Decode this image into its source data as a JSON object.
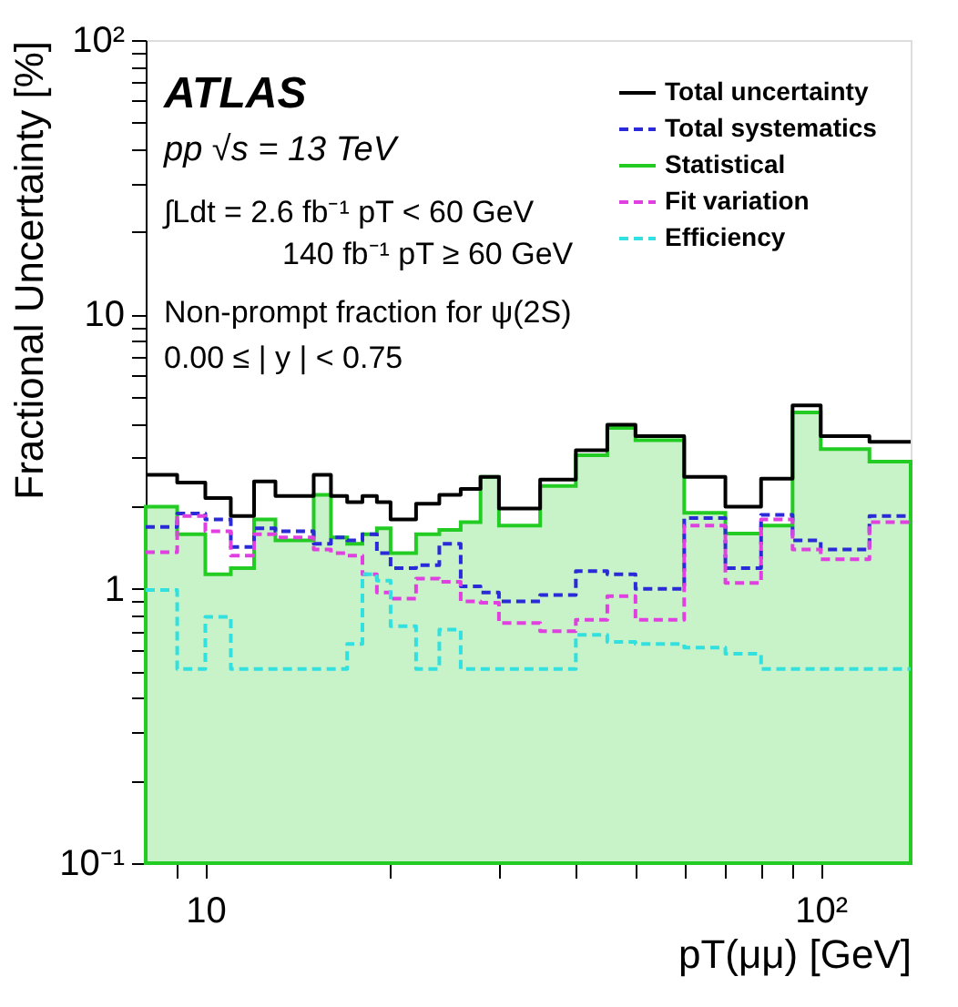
{
  "chart_data": {
    "type": "step",
    "xlabel": "pT(μμ) [GeV]",
    "ylabel": "Fractional Uncertainty [%]",
    "x": [
      8,
      9,
      10,
      11,
      12,
      13,
      15,
      16,
      17,
      18,
      19,
      20,
      22,
      24,
      26,
      28,
      30,
      35,
      40,
      45,
      50,
      60,
      70,
      80,
      90,
      100,
      120,
      140
    ],
    "series": [
      {
        "name": "Total uncertainty",
        "color": "#000000",
        "line_style": "solid",
        "values": [
          2.6,
          2.44,
          2.14,
          1.84,
          2.46,
          2.18,
          2.6,
          2.18,
          2.07,
          2.18,
          2.07,
          1.79,
          2.04,
          2.2,
          2.31,
          2.56,
          1.96,
          2.5,
          3.2,
          3.96,
          3.6,
          2.56,
          1.99,
          2.52,
          4.66,
          3.6,
          3.43,
          3.43
        ]
      },
      {
        "name": "Total systematics",
        "color": "#2a2ad8",
        "line_style": "dashed",
        "values": [
          1.68,
          1.88,
          1.79,
          1.42,
          1.66,
          1.62,
          1.46,
          1.54,
          1.5,
          1.58,
          1.35,
          1.19,
          1.22,
          1.46,
          1.02,
          0.97,
          0.9,
          0.95,
          1.16,
          1.13,
          1.0,
          1.81,
          1.19,
          1.86,
          1.5,
          1.39,
          1.84,
          1.84
        ]
      },
      {
        "name": "Statistical",
        "type": "area",
        "color": "#22cc22",
        "values": [
          1.99,
          1.58,
          1.13,
          1.19,
          1.79,
          1.5,
          2.2,
          1.54,
          1.46,
          1.58,
          1.66,
          1.35,
          1.58,
          1.64,
          1.75,
          2.56,
          1.7,
          2.37,
          3.07,
          3.86,
          3.48,
          1.89,
          1.59,
          1.7,
          4.39,
          3.23,
          2.91,
          2.91
        ]
      },
      {
        "name": "Fit variation",
        "color": "#e040e0",
        "line_style": "dashed",
        "values": [
          1.36,
          1.84,
          1.62,
          1.32,
          1.58,
          1.54,
          1.39,
          1.35,
          1.32,
          1.13,
          0.97,
          0.92,
          1.09,
          1.06,
          0.9,
          0.89,
          0.75,
          0.7,
          0.77,
          0.94,
          0.77,
          1.7,
          1.05,
          1.79,
          1.39,
          1.28,
          1.75,
          1.75
        ]
      },
      {
        "name": "Efficiency",
        "color": "#33e0e0",
        "line_style": "dashed",
        "values": [
          0.99,
          0.51,
          0.79,
          0.51,
          0.51,
          0.51,
          0.51,
          0.51,
          0.63,
          1.13,
          1.07,
          0.73,
          0.51,
          0.71,
          0.51,
          0.51,
          0.51,
          0.51,
          0.68,
          0.64,
          0.63,
          0.61,
          0.58,
          0.51,
          0.51,
          0.51,
          0.51,
          0.51
        ]
      }
    ],
    "log": "xy",
    "xlim": [
      8,
      140
    ],
    "ylim": [
      0.1,
      100
    ],
    "xticks": [
      {
        "value": 9,
        "label": null
      },
      10,
      {
        "value": 20,
        "label": null
      },
      {
        "value": 30,
        "label": null
      },
      {
        "value": 40,
        "label": null
      },
      {
        "value": 50,
        "label": null
      },
      {
        "value": 60,
        "label": null
      },
      {
        "value": 70,
        "label": null
      },
      {
        "value": 80,
        "label": null
      },
      {
        "value": 90,
        "label": null
      },
      {
        "value": 100,
        "label": "10²"
      }
    ],
    "yticks": [
      {
        "value": 0.1,
        "label": "10⁻¹"
      },
      {
        "value": 0.2,
        "label": null
      },
      {
        "value": 0.3,
        "label": null
      },
      {
        "value": 0.4,
        "label": null
      },
      {
        "value": 0.5,
        "label": null
      },
      {
        "value": 0.6,
        "label": null
      },
      {
        "value": 0.7,
        "label": null
      },
      {
        "value": 0.8,
        "label": null
      },
      {
        "value": 0.9,
        "label": null
      },
      1,
      {
        "value": 2,
        "label": null
      },
      {
        "value": 3,
        "label": null
      },
      {
        "value": 4,
        "label": null
      },
      {
        "value": 5,
        "label": null
      },
      {
        "value": 6,
        "label": null
      },
      {
        "value": 7,
        "label": null
      },
      {
        "value": 8,
        "label": null
      },
      {
        "value": 9,
        "label": null
      },
      10,
      {
        "value": 20,
        "label": null
      },
      {
        "value": 30,
        "label": null
      },
      {
        "value": 40,
        "label": null
      },
      {
        "value": 50,
        "label": null
      },
      {
        "value": 60,
        "label": null
      },
      {
        "value": 70,
        "label": null
      },
      {
        "value": 80,
        "label": null
      },
      {
        "value": 90,
        "label": null
      },
      {
        "value": 100,
        "label": "10²"
      }
    ],
    "grid": false,
    "legend": "top right",
    "annotations": [
      "ATLAS",
      "pp √s = 13 TeV",
      "∫Ldt = 2.6 fb⁻¹  pT < 60 GeV",
      "140 fb⁻¹  pT ≥ 60 GeV",
      "Non-prompt fraction for ψ(2S)",
      "0.00 ≤ | y | < 0.75"
    ]
  }
}
